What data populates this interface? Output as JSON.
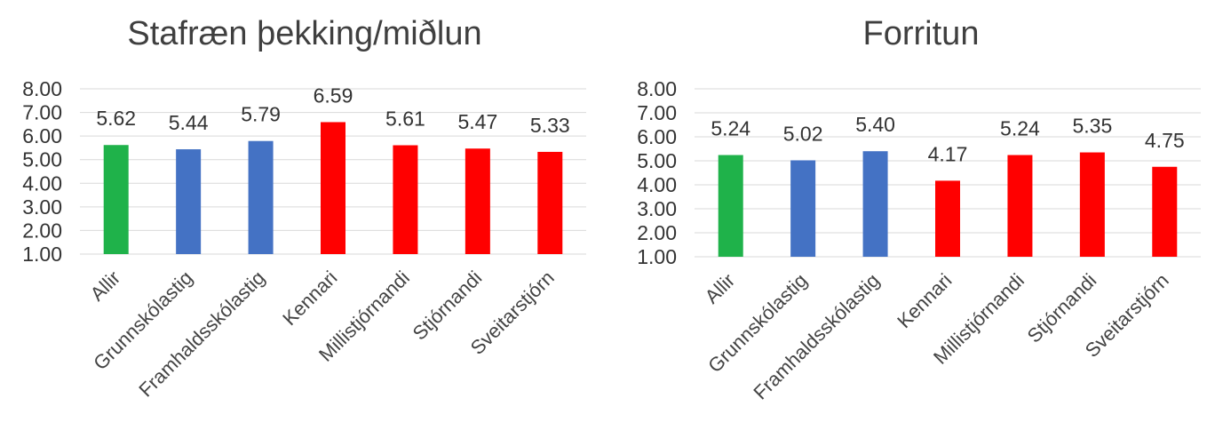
{
  "colors": {
    "green": "#1fb24a",
    "blue": "#4472c4",
    "red": "#ff0000",
    "gridline": "#d9d9d9"
  },
  "chart_data": [
    {
      "type": "bar",
      "title": "Stafræn þekking/miðlun",
      "categories": [
        "Allir",
        "Grunnskólastig",
        "Framhaldsskólastig",
        "Kennari",
        "Millistjórnandi",
        "Stjórnandi",
        "Sveitarstjórn"
      ],
      "values": [
        5.62,
        5.44,
        5.79,
        6.59,
        5.61,
        5.47,
        5.33
      ],
      "value_labels": [
        "5.62",
        "5.44",
        "5.79",
        "6.59",
        "5.61",
        "5.47",
        "5.33"
      ],
      "bar_colors": [
        "green",
        "blue",
        "blue",
        "red",
        "red",
        "red",
        "red"
      ],
      "ylim": [
        1,
        8
      ],
      "yticks": [
        "1.00",
        "2.00",
        "3.00",
        "4.00",
        "5.00",
        "6.00",
        "7.00",
        "8.00"
      ],
      "grid": true,
      "legend": "none"
    },
    {
      "type": "bar",
      "title": "Forritun",
      "categories": [
        "Allir",
        "Grunnskólastig",
        "Framhaldsskólastig",
        "Kennari",
        "Millistjórnandi",
        "Stjórnandi",
        "Sveitarstjórn"
      ],
      "values": [
        5.24,
        5.02,
        5.4,
        4.17,
        5.24,
        5.35,
        4.75
      ],
      "value_labels": [
        "5.24",
        "5.02",
        "5.40",
        "4.17",
        "5.24",
        "5.35",
        "4.75"
      ],
      "bar_colors": [
        "green",
        "blue",
        "blue",
        "red",
        "red",
        "red",
        "red"
      ],
      "ylim": [
        1,
        8
      ],
      "yticks": [
        "1.00",
        "2.00",
        "3.00",
        "4.00",
        "5.00",
        "6.00",
        "7.00",
        "8.00"
      ],
      "grid": true,
      "legend": "none"
    }
  ]
}
